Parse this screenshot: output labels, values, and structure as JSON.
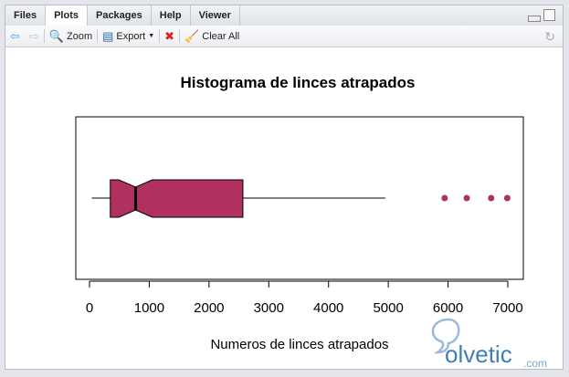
{
  "tabs": [
    {
      "label": "Files"
    },
    {
      "label": "Plots",
      "active": true
    },
    {
      "label": "Packages"
    },
    {
      "label": "Help"
    },
    {
      "label": "Viewer"
    }
  ],
  "toolbar": {
    "zoom": "Zoom",
    "export": "Export",
    "clear_all": "Clear All",
    "icons": [
      "back-arrow-icon",
      "forward-arrow-icon",
      "zoom-icon",
      "export-icon",
      "remove-plot-icon",
      "broom-icon",
      "refresh-icon"
    ]
  },
  "watermark": {
    "text": "solvetic",
    "suffix": ".com"
  },
  "chart_data": {
    "type": "boxplot",
    "orientation": "horizontal",
    "notch": true,
    "title": "Histograma de linces atrapados",
    "xlabel": "Numeros de linces atrapados",
    "xlim": [
      0,
      7000
    ],
    "ticks": [
      0,
      1000,
      2000,
      3000,
      4000,
      5000,
      6000,
      7000
    ],
    "stats": {
      "whisker_low": 39,
      "q1": 348,
      "median": 771,
      "q3": 2567,
      "whisker_high": 4950,
      "notch_low": 490,
      "notch_high": 1052
    },
    "outliers": [
      5943,
      6313,
      6721,
      6991
    ],
    "fill_color": "#b03060"
  }
}
